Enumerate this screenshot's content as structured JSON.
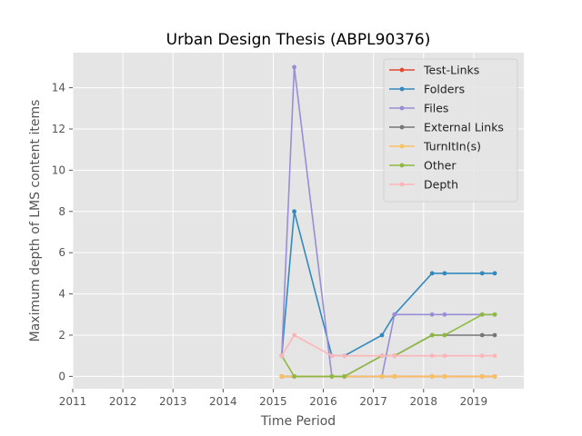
{
  "chart_data": {
    "type": "line",
    "title": "Urban Design Thesis (ABPL90376)",
    "xlabel": "Time Period",
    "ylabel": "Maximum depth of LMS content items",
    "xlim": [
      2011,
      2020
    ],
    "ylim": [
      -0.6,
      15.7
    ],
    "xticks": [
      2011,
      2012,
      2013,
      2014,
      2015,
      2016,
      2017,
      2018,
      2019
    ],
    "yticks": [
      0,
      2,
      4,
      6,
      8,
      10,
      12,
      14
    ],
    "grid": true,
    "legend_position": "top-right",
    "x": [
      2015.17,
      2015.42,
      2016.17,
      2016.42,
      2017.17,
      2017.42,
      2018.17,
      2018.42,
      2019.17,
      2019.42
    ],
    "series": [
      {
        "name": "Test-Links",
        "color": "#E24A33",
        "values": [
          0,
          0,
          0,
          0,
          0,
          0,
          0,
          0,
          0,
          0
        ]
      },
      {
        "name": "Folders",
        "color": "#348ABD",
        "values": [
          1,
          8,
          1,
          1,
          2,
          3,
          5,
          5,
          5,
          5
        ]
      },
      {
        "name": "Files",
        "color": "#988ED5",
        "values": [
          1,
          15,
          0,
          0,
          0,
          3,
          3,
          3,
          3,
          3
        ]
      },
      {
        "name": "External Links",
        "color": "#777777",
        "values": [
          0,
          0,
          0,
          0,
          1,
          1,
          2,
          2,
          2,
          2
        ]
      },
      {
        "name": "TurnItIn(s)",
        "color": "#FBC15E",
        "values": [
          0,
          0,
          0,
          0,
          0,
          0,
          0,
          0,
          0,
          0
        ]
      },
      {
        "name": "Other",
        "color": "#8EBA42",
        "values": [
          1,
          0,
          0,
          0,
          1,
          1,
          2,
          2,
          3,
          3
        ]
      },
      {
        "name": "Depth",
        "color": "#FFB5B8",
        "values": [
          1,
          2,
          1,
          1,
          1,
          1,
          1,
          1,
          1,
          1
        ]
      }
    ]
  }
}
